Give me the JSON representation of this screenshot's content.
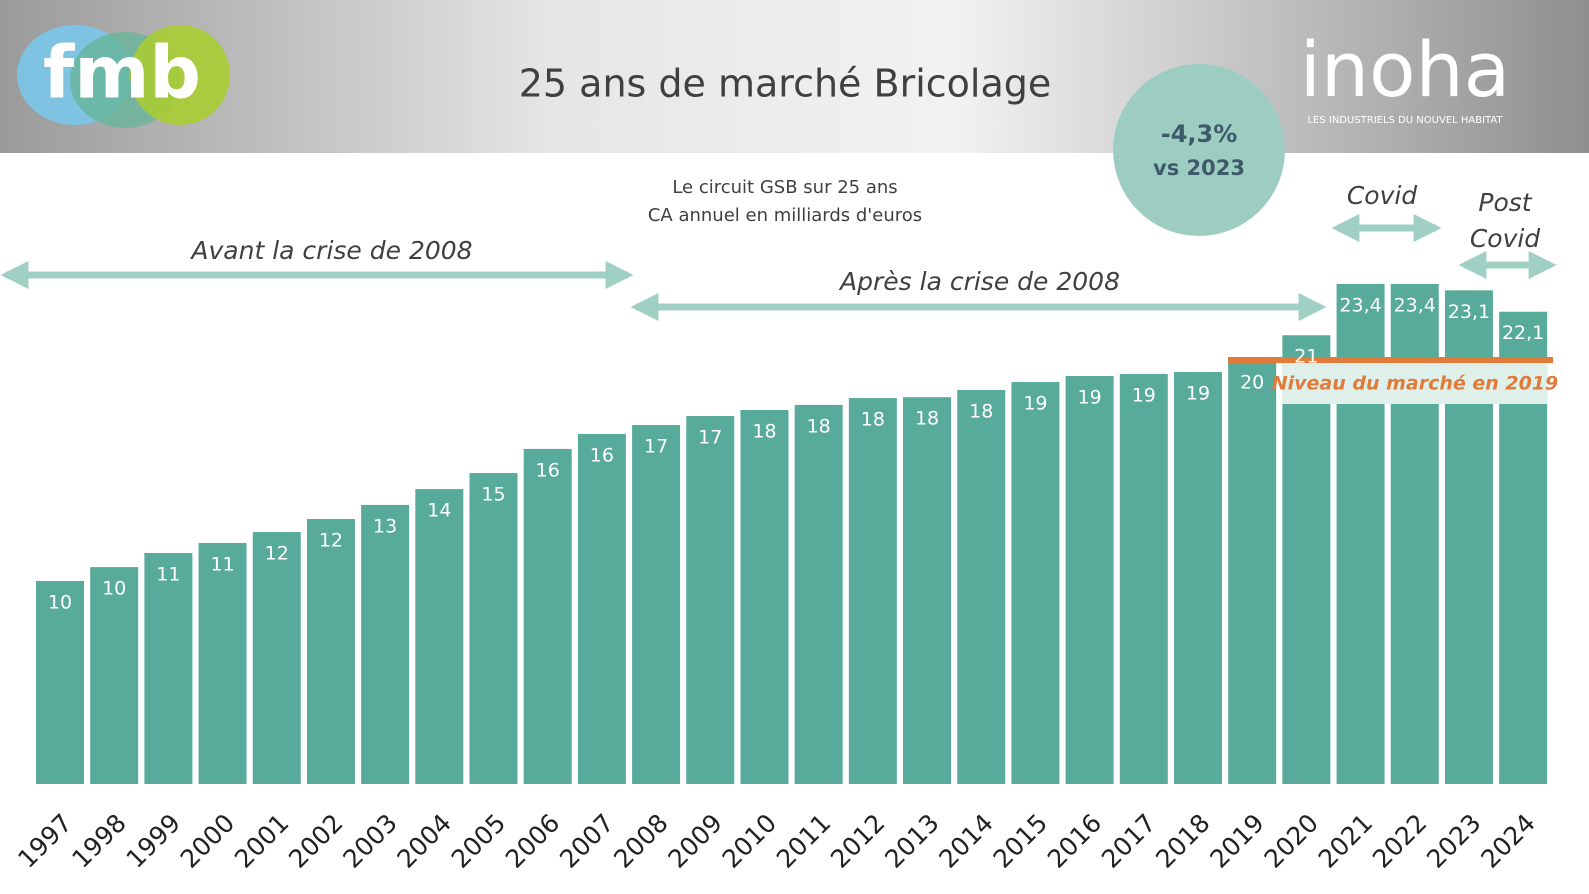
{
  "chart_data": {
    "type": "bar",
    "title": "25 ans de marché Bricolage",
    "subtitle": [
      "Le circuit GSB sur 25 ans",
      "CA annuel en milliards d'euros"
    ],
    "categories": [
      "1997",
      "1998",
      "1999",
      "2000",
      "2001",
      "2002",
      "2003",
      "2004",
      "2005",
      "2006",
      "2007",
      "2008",
      "2009",
      "2010",
      "2011",
      "2012",
      "2013",
      "2014",
      "2015",
      "2016",
      "2017",
      "2018",
      "2019",
      "2020",
      "2021",
      "2022",
      "2023",
      "2024"
    ],
    "values": [
      9.5,
      10.15,
      10.81,
      11.28,
      11.79,
      12.4,
      13.06,
      13.8,
      14.55,
      15.68,
      16.38,
      16.8,
      17.22,
      17.5,
      17.74,
      18.06,
      18.1,
      18.44,
      18.81,
      19.09,
      19.19,
      19.28,
      19.84,
      21.0,
      23.4,
      23.4,
      23.1,
      22.1
    ],
    "value_labels": [
      "10",
      "10",
      "11",
      "11",
      "12",
      "12",
      "13",
      "14",
      "15",
      "16",
      "16",
      "17",
      "17",
      "18",
      "18",
      "18",
      "18",
      "18",
      "19",
      "19",
      "19",
      "19",
      "20",
      "21",
      "23,4",
      "23,4",
      "23,1",
      "22,1"
    ],
    "color": "#58ab9a",
    "annotations": {
      "change": "-4,3%",
      "change_ref": "vs 2023",
      "before": "Avant la crise de 2008",
      "after": "Après la crise de 2008",
      "covid": "Covid",
      "post_covid": [
        "Post",
        "Covid"
      ],
      "level_2019": "Niveau du marché en 2019"
    },
    "logos": {
      "left": "fmb",
      "right": "inoha",
      "right_tagline": "LES INDUSTRIELS DU NOUVEL HABITAT"
    }
  }
}
